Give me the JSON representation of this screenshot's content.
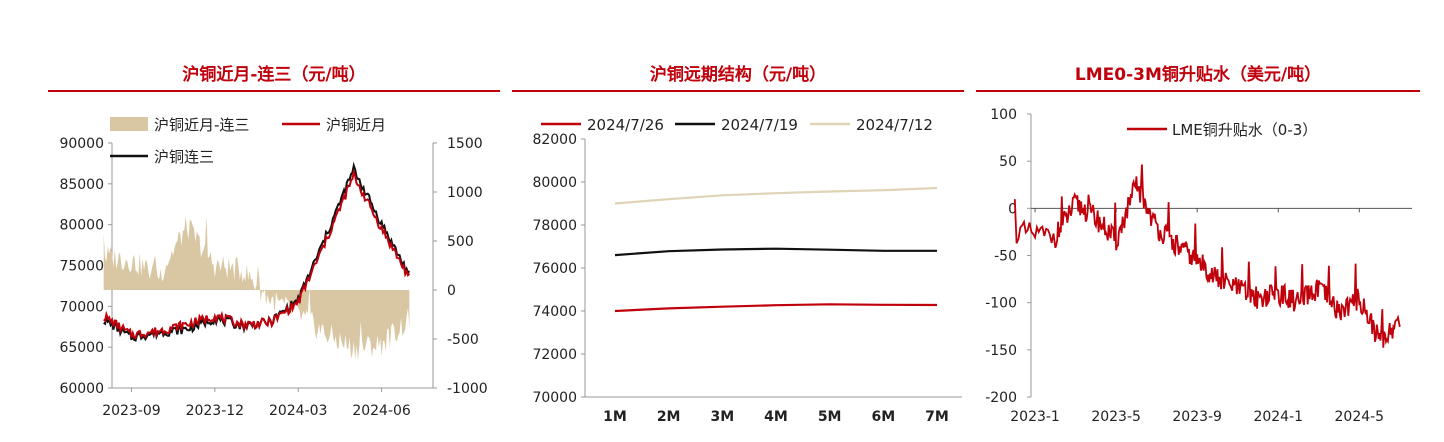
{
  "chart_data": [
    {
      "type": "line",
      "title": "沪铜近月-连三（元/吨）",
      "x_ticks": [
        "2023-09",
        "2023-12",
        "2024-03",
        "2024-06"
      ],
      "y_left": {
        "ticks": [
          60000,
          65000,
          70000,
          75000,
          80000,
          85000,
          90000
        ],
        "lim": [
          60000,
          90000
        ]
      },
      "y_right": {
        "ticks": [
          -1000,
          -500,
          0,
          500,
          1000,
          1500
        ],
        "lim": [
          -1000,
          1500
        ]
      },
      "legend_position": "top",
      "colors": {
        "spread": "#d9c7a3",
        "near": "#c0000b",
        "third": "#111111"
      },
      "series": [
        {
          "name": "沪铜近月-连三",
          "kind": "area",
          "axis": "right",
          "x": [
            "2023-08",
            "2023-09",
            "2023-10",
            "2023-11",
            "2023-12",
            "2024-01",
            "2024-02",
            "2024-03",
            "2024-04",
            "2024-05",
            "2024-06",
            "2024-07"
          ],
          "values": [
            350,
            300,
            150,
            650,
            250,
            200,
            -100,
            -250,
            -450,
            -600,
            -550,
            -300
          ]
        },
        {
          "name": "沪铜近月",
          "kind": "line",
          "axis": "left",
          "x": [
            "2023-08",
            "2023-09",
            "2023-10",
            "2023-11",
            "2023-12",
            "2024-01",
            "2024-02",
            "2024-03",
            "2024-04",
            "2024-05",
            "2024-06",
            "2024-07"
          ],
          "values": [
            68800,
            66500,
            67000,
            67800,
            68800,
            67800,
            68000,
            70500,
            78000,
            86000,
            79500,
            73500
          ]
        },
        {
          "name": "沪铜连三",
          "kind": "line",
          "axis": "left",
          "x": [
            "2023-08",
            "2023-09",
            "2023-10",
            "2023-11",
            "2023-12",
            "2024-01",
            "2024-02",
            "2024-03",
            "2024-04",
            "2024-05",
            "2024-06",
            "2024-07"
          ],
          "values": [
            68400,
            66200,
            66800,
            67200,
            68500,
            67600,
            68100,
            70800,
            78600,
            86800,
            80100,
            73800
          ]
        }
      ]
    },
    {
      "type": "line",
      "title": "沪铜远期结构（元/吨）",
      "categories": [
        "1M",
        "2M",
        "3M",
        "4M",
        "5M",
        "6M",
        "7M"
      ],
      "y_ticks": [
        70000,
        72000,
        74000,
        76000,
        78000,
        80000,
        82000
      ],
      "ylim": [
        70000,
        82000
      ],
      "legend_position": "top",
      "series": [
        {
          "name": "2024/7/26",
          "color": "#c0000b",
          "values": [
            74000,
            74120,
            74200,
            74270,
            74310,
            74290,
            74280
          ]
        },
        {
          "name": "2024/7/19",
          "color": "#111111",
          "values": [
            76600,
            76780,
            76860,
            76900,
            76850,
            76800,
            76800
          ]
        },
        {
          "name": "2024/7/12",
          "color": "#e0d3b6",
          "values": [
            79000,
            79200,
            79380,
            79480,
            79560,
            79620,
            79720
          ]
        }
      ]
    },
    {
      "type": "line",
      "title": "LME0-3M铜升贴水（美元/吨）",
      "x_ticks": [
        "2023-1",
        "2023-5",
        "2023-9",
        "2024-1",
        "2024-5"
      ],
      "y_ticks": [
        -200,
        -150,
        -100,
        -50,
        0,
        50,
        100
      ],
      "ylim": [
        -200,
        100
      ],
      "legend_position": "top-right",
      "series": [
        {
          "name": "LME铜升贴水（0-3）",
          "color": "#c0000b",
          "x": [
            "2022-12",
            "2023-02",
            "2023-03",
            "2023-04",
            "2023-05",
            "2023-06",
            "2023-07",
            "2023-08",
            "2023-09",
            "2023-10",
            "2023-11",
            "2023-12",
            "2024-01",
            "2024-02",
            "2024-03",
            "2024-04",
            "2024-05",
            "2024-06",
            "2024-07"
          ],
          "values": [
            -25,
            -30,
            5,
            -10,
            -35,
            25,
            -20,
            -40,
            -55,
            -75,
            -85,
            -95,
            -90,
            -100,
            -85,
            -110,
            -95,
            -140,
            -120
          ]
        }
      ]
    }
  ]
}
